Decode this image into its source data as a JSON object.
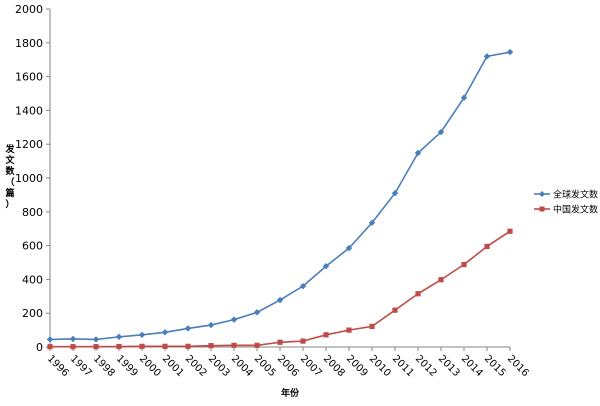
{
  "chart_data": {
    "type": "line",
    "title": "",
    "xlabel": "年份",
    "ylabel": "发文数（篇）",
    "ylim": [
      0,
      2000
    ],
    "yticks": [
      0,
      200,
      400,
      600,
      800,
      1000,
      1200,
      1400,
      1600,
      1800,
      2000
    ],
    "categories": [
      "1996",
      "1997",
      "1998",
      "1999",
      "2000",
      "2001",
      "2002",
      "2003",
      "2004",
      "2005",
      "2006",
      "2007",
      "2008",
      "2009",
      "2010",
      "2011",
      "2012",
      "2013",
      "2014",
      "2015",
      "2016"
    ],
    "series": [
      {
        "name": "全球发文数",
        "color": "#4a7ebb",
        "marker": "diamond",
        "values": [
          45,
          48,
          45,
          60,
          72,
          87,
          110,
          130,
          162,
          205,
          278,
          360,
          478,
          585,
          735,
          910,
          1148,
          1272,
          1475,
          1720,
          1745
        ]
      },
      {
        "name": "中国发文数",
        "color": "#be4b48",
        "marker": "square",
        "values": [
          2,
          2,
          2,
          3,
          4,
          4,
          4,
          8,
          10,
          10,
          28,
          35,
          72,
          100,
          122,
          218,
          315,
          398,
          488,
          595,
          685
        ]
      }
    ],
    "grid": false,
    "legend": "right"
  }
}
